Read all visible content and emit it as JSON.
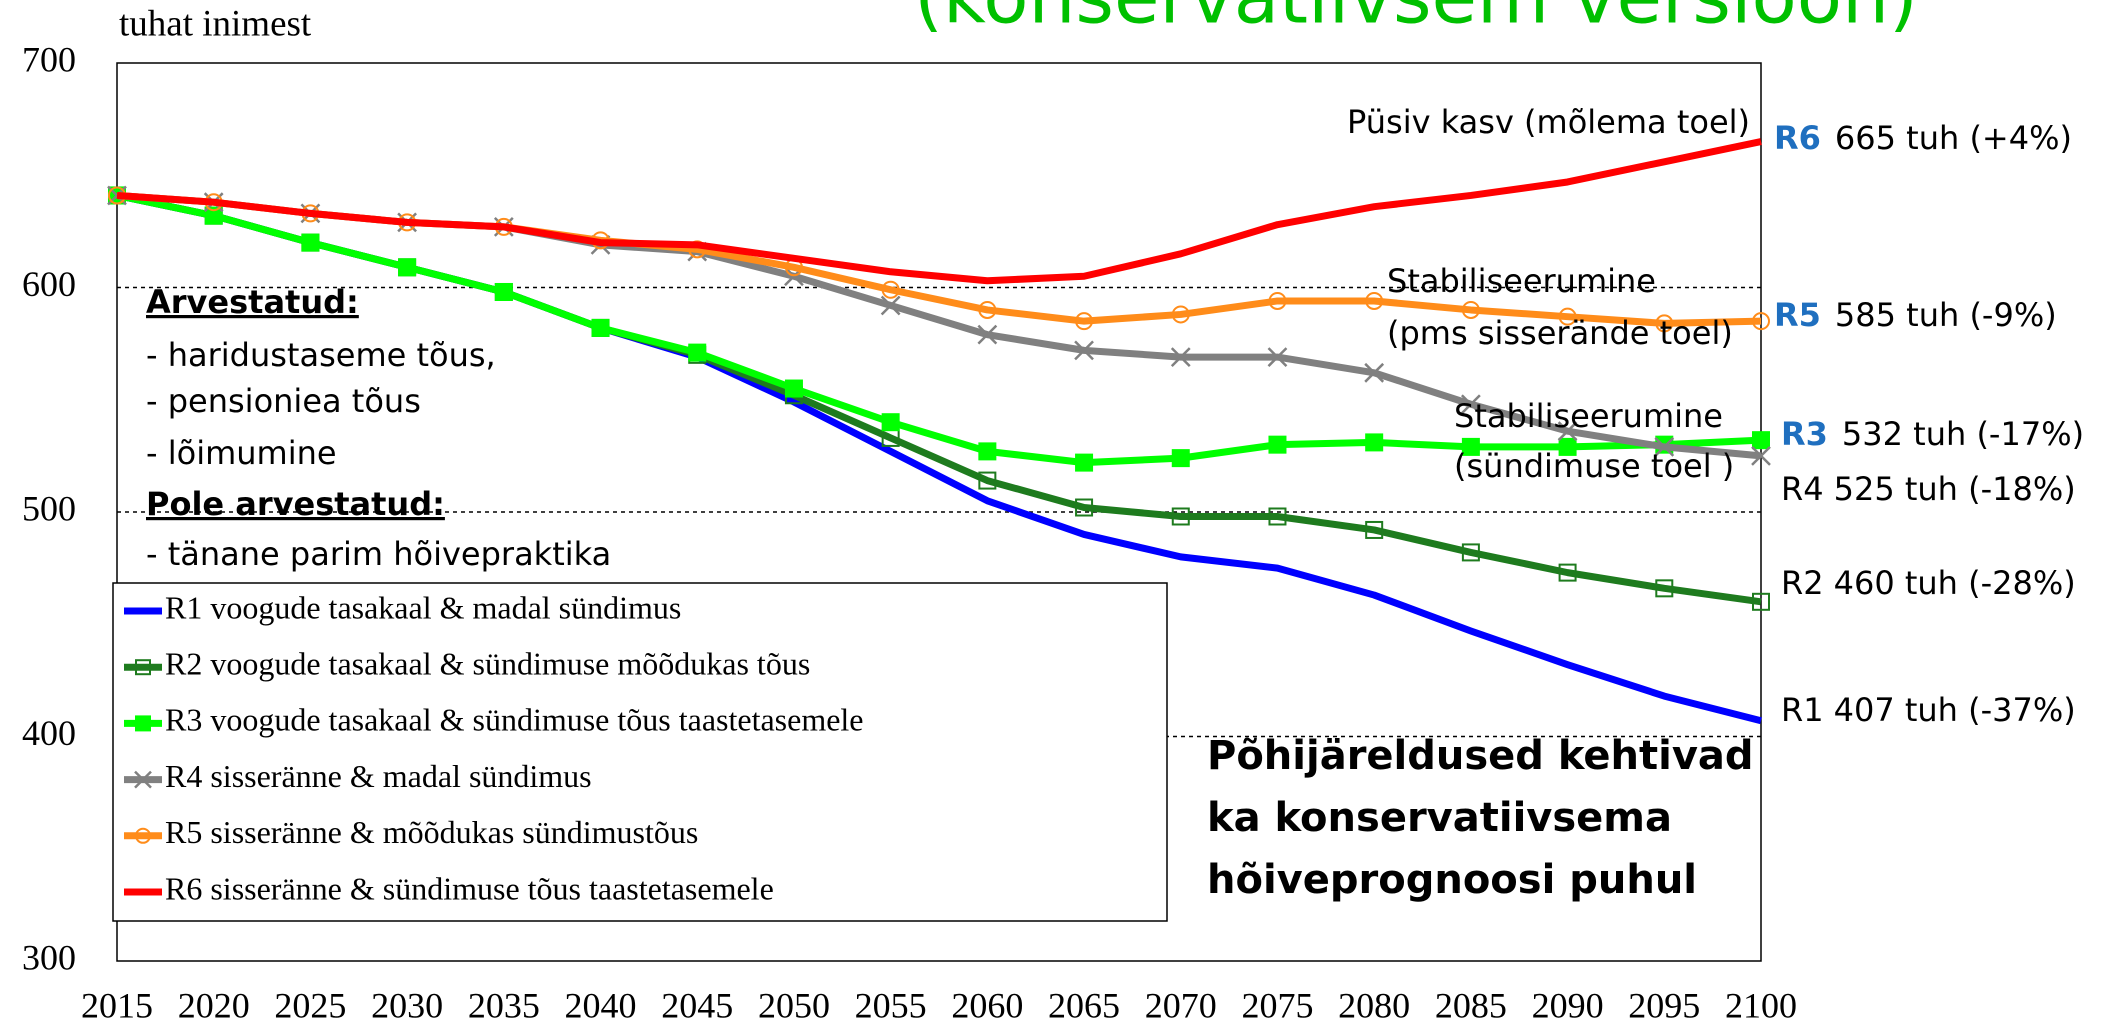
{
  "chart_data": {
    "type": "line",
    "title": "(konservatiivsem versioon)",
    "y_label": "tuhat inimest",
    "x": [
      2015,
      2020,
      2025,
      2030,
      2035,
      2040,
      2045,
      2050,
      2055,
      2060,
      2065,
      2070,
      2075,
      2080,
      2085,
      2090,
      2095,
      2100
    ],
    "xlim": [
      2015,
      2100
    ],
    "ylim": [
      300,
      700
    ],
    "yticks": [
      300,
      400,
      500,
      600,
      700
    ],
    "grid": "dashed",
    "legend": "lower left",
    "series": [
      {
        "name": "R1 voogude tasakaal & madal sündimus",
        "color": "#0000ff",
        "marker": "none",
        "values": [
          641,
          632,
          620,
          609,
          598,
          582,
          569,
          549,
          527,
          505,
          490,
          480,
          475,
          463,
          447,
          432,
          418,
          407
        ]
      },
      {
        "name": "R2 voogude tasakaal & sündimuse mõõdukas tõus",
        "color": "#1e7b1e",
        "marker": "square-open",
        "values": [
          641,
          632,
          620,
          609,
          598,
          582,
          570,
          552,
          533,
          514,
          502,
          498,
          498,
          492,
          482,
          473,
          466,
          460
        ]
      },
      {
        "name": "R3 voogude tasakaal & sündimuse tõus taastetasemele",
        "color": "#00ff00",
        "marker": "square",
        "values": [
          641,
          632,
          620,
          609,
          598,
          582,
          571,
          555,
          540,
          527,
          522,
          524,
          530,
          531,
          529,
          529,
          530,
          532
        ]
      },
      {
        "name": "R4 sisseränne & madal sündimus",
        "color": "#808080",
        "marker": "x",
        "values": [
          641,
          638,
          633,
          629,
          627,
          619,
          616,
          605,
          592,
          579,
          572,
          569,
          569,
          562,
          548,
          536,
          529,
          525
        ]
      },
      {
        "name": "R5 sisseränne & mõõdukas sündimustõus",
        "color": "#ff8c1a",
        "marker": "circle-open",
        "values": [
          641,
          638,
          633,
          629,
          627,
          621,
          617,
          609,
          599,
          590,
          585,
          588,
          594,
          594,
          590,
          587,
          584,
          585
        ]
      },
      {
        "name": "R6 sisseränne & sündimuse tõus taastetasemele",
        "color": "#ff0000",
        "marker": "none",
        "values": [
          641,
          638,
          633,
          629,
          627,
          620,
          619,
          613,
          607,
          603,
          605,
          615,
          628,
          636,
          641,
          647,
          656,
          665
        ]
      }
    ],
    "annotations": [
      "Püsiv kasv (mõlema toel)",
      "Stabiliseerumine",
      "(pms sisserände toel)",
      "Stabiliseerumine",
      "(sündimuse toel )"
    ],
    "end_labels": [
      {
        "key": "R6",
        "text": "665 tuh (+4%)",
        "color": "#1f6fbf"
      },
      {
        "key": "R5",
        "text": "585 tuh (-9%)",
        "color": "#1f6fbf"
      },
      {
        "key": "R3",
        "text": "532 tuh (-17%)",
        "color": "#1f6fbf"
      },
      {
        "key": "R4",
        "text": "525 tuh (-18%)",
        "color": "#000000"
      },
      {
        "key": "R2",
        "text": "460 tuh (-28%)",
        "color": "#000000"
      },
      {
        "key": "R1",
        "text": "407 tuh (-37%)",
        "color": "#000000"
      }
    ],
    "notes": {
      "included_title": "Arvestatud:",
      "included": [
        "- haridustaseme tõus,",
        "- pensioniea tõus",
        "- lõimumine"
      ],
      "excluded_title": "Pole arvestatud:",
      "excluded": [
        "- tänane parim hõivepraktika"
      ]
    },
    "conclusion": [
      "Põhijäreldused kehtivad",
      "ka konservatiivsema",
      "hõiveprognoosi puhul"
    ]
  }
}
